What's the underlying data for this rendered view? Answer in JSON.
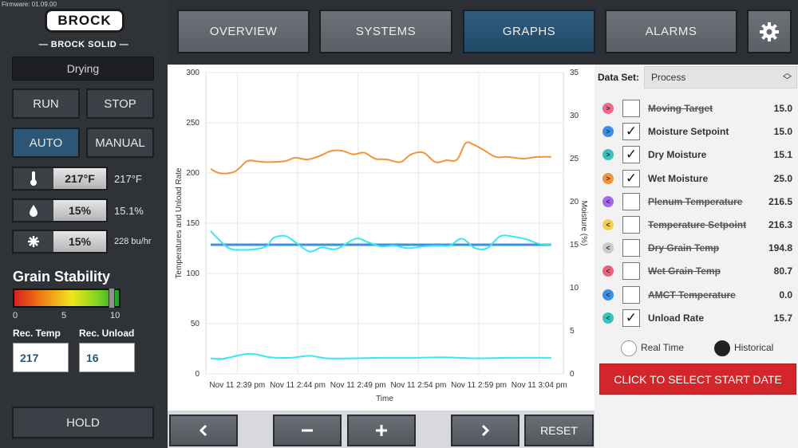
{
  "firmware": "Firmware: 01.09.00",
  "logo": {
    "brand": "BROCK",
    "subtitle": "— BROCK SOLID —"
  },
  "left": {
    "status": "Drying",
    "run_label": "RUN",
    "stop_label": "STOP",
    "auto_label": "AUTO",
    "manual_label": "MANUAL",
    "readings": [
      {
        "icon": "thermometer-icon",
        "value": "217°F",
        "side": "217°F"
      },
      {
        "icon": "moisture-drop-icon",
        "value": "15%",
        "side": "15.1%"
      },
      {
        "icon": "fan-icon",
        "value": "15%",
        "side": "228 bu/hr"
      }
    ],
    "grain_stability_title": "Grain Stability",
    "grain_stability_level": 0.93,
    "scale_ticks": [
      "0",
      "5",
      "10"
    ],
    "rec_temp_label": "Rec. Temp",
    "rec_temp_value": "217",
    "rec_unload_label": "Rec. Unload",
    "rec_unload_value": "16",
    "hold_label": "HOLD"
  },
  "nav": {
    "overview": "OVERVIEW",
    "systems": "SYSTEMS",
    "graphs": "GRAPHS",
    "alarms": "ALARMS",
    "active": "GRAPHS"
  },
  "chart_controls": {
    "reset": "RESET"
  },
  "right": {
    "dataset_label": "Data Set:",
    "dataset_value": "Process",
    "series": [
      {
        "name": "Moving Target",
        "value": "15.0",
        "checked": false,
        "color": "#f06b8a",
        "dir": ">"
      },
      {
        "name": "Moisture Setpoint",
        "value": "15.0",
        "checked": true,
        "color": "#3a8fe6",
        "dir": ">"
      },
      {
        "name": "Dry Moisture",
        "value": "15.1",
        "checked": true,
        "color": "#36c3c0",
        "dir": ">"
      },
      {
        "name": "Wet Moisture",
        "value": "25.0",
        "checked": true,
        "color": "#f39436",
        "dir": ">"
      },
      {
        "name": "Plenum Temperature",
        "value": "216.5",
        "checked": false,
        "color": "#a26ae8",
        "dir": "<"
      },
      {
        "name": "Temperature Setpoint",
        "value": "216.3",
        "checked": false,
        "color": "#f5cf4a",
        "dir": "<"
      },
      {
        "name": "Dry Grain Temp",
        "value": "194.8",
        "checked": false,
        "color": "#c9cbce",
        "dir": "<"
      },
      {
        "name": "Wet Grain Temp",
        "value": "80.7",
        "checked": false,
        "color": "#f0607a",
        "dir": "<"
      },
      {
        "name": "AMCT Temperature",
        "value": "0.0",
        "checked": false,
        "color": "#3a8fe6",
        "dir": "<"
      },
      {
        "name": "Unload Rate",
        "value": "15.7",
        "checked": true,
        "color": "#36c3c0",
        "dir": "<"
      }
    ],
    "realtime_label": "Real Time",
    "historical_label": "Historical",
    "start_date_label": "CLICK TO SELECT START DATE"
  },
  "chart_data": {
    "type": "line",
    "xlabel": "Time",
    "ylabel": "Temperatures and Unload Rate",
    "y2label": "Moisture (%)",
    "ylim": [
      0,
      300
    ],
    "y2lim": [
      0,
      35
    ],
    "yticks": [
      0,
      50,
      100,
      150,
      200,
      250,
      300
    ],
    "y2ticks": [
      0,
      5,
      10,
      15,
      20,
      25,
      30,
      35
    ],
    "x_tick_labels": [
      "Nov 11 2:39 pm",
      "Nov 11 2:44 pm",
      "Nov 11 2:49 pm",
      "Nov 11 2:54 pm",
      "Nov 11 2:59 pm",
      "Nov 11 3:04 pm"
    ],
    "x_tick_minutes": [
      2.6,
      7.6,
      12.6,
      17.6,
      22.6,
      27.6
    ],
    "xlim_minutes": [
      0,
      29.6
    ],
    "grid": true,
    "series": [
      {
        "color": "#f39436",
        "axis": "right",
        "x": [
          0.4,
          1.2,
          2.4,
          3.4,
          4.2,
          5.0,
          6.5,
          7.4,
          8.4,
          9.4,
          10.4,
          11.3,
          12.2,
          13.1,
          14.0,
          15.0,
          16.1,
          17.0,
          18.0,
          19.0,
          19.9,
          20.8,
          21.5,
          22.2,
          23.0,
          24.0,
          25.0,
          26.3,
          27.4,
          28.6
        ],
        "y": [
          23.8,
          23.3,
          23.5,
          24.7,
          24.7,
          24.6,
          24.7,
          25.1,
          24.9,
          25.3,
          25.9,
          25.9,
          25.5,
          25.7,
          25.0,
          24.9,
          24.6,
          25.5,
          25.7,
          24.6,
          24.8,
          24.9,
          26.8,
          26.6,
          26.0,
          25.2,
          25.2,
          25.0,
          25.2,
          25.2
        ]
      },
      {
        "color": "#3a8fe6",
        "axis": "right",
        "x": [
          0.4,
          28.6
        ],
        "y": [
          15.0,
          15.0
        ]
      },
      {
        "color": "#36e8f0",
        "axis": "right",
        "x": [
          0.4,
          1.0,
          1.9,
          2.8,
          4.2,
          5.1,
          5.6,
          6.6,
          7.5,
          8.6,
          9.6,
          10.8,
          12.4,
          13.4,
          14.5,
          15.6,
          16.7,
          18.0,
          19.2,
          20.2,
          21.2,
          22.3,
          23.3,
          24.4,
          25.6,
          26.6,
          27.6,
          28.6
        ],
        "y": [
          16.6,
          15.7,
          14.6,
          14.4,
          14.5,
          14.9,
          15.8,
          16.0,
          15.2,
          14.2,
          14.7,
          14.5,
          15.7,
          15.3,
          14.8,
          14.9,
          14.6,
          14.8,
          14.9,
          14.9,
          15.7,
          14.6,
          14.6,
          16.0,
          15.9,
          15.6,
          15.1,
          15.0
        ]
      },
      {
        "color": "#36e8f0",
        "axis": "left",
        "x": [
          0.4,
          1.4,
          3.6,
          5.3,
          7.0,
          8.6,
          10.0,
          12.3,
          14.8,
          17.3,
          19.6,
          22.5,
          25.3,
          28.6
        ],
        "y": [
          15.5,
          15.0,
          20.0,
          16.5,
          16.0,
          18.0,
          15.5,
          15.5,
          16.0,
          16.0,
          16.5,
          15.5,
          16.0,
          16.0
        ]
      }
    ]
  }
}
